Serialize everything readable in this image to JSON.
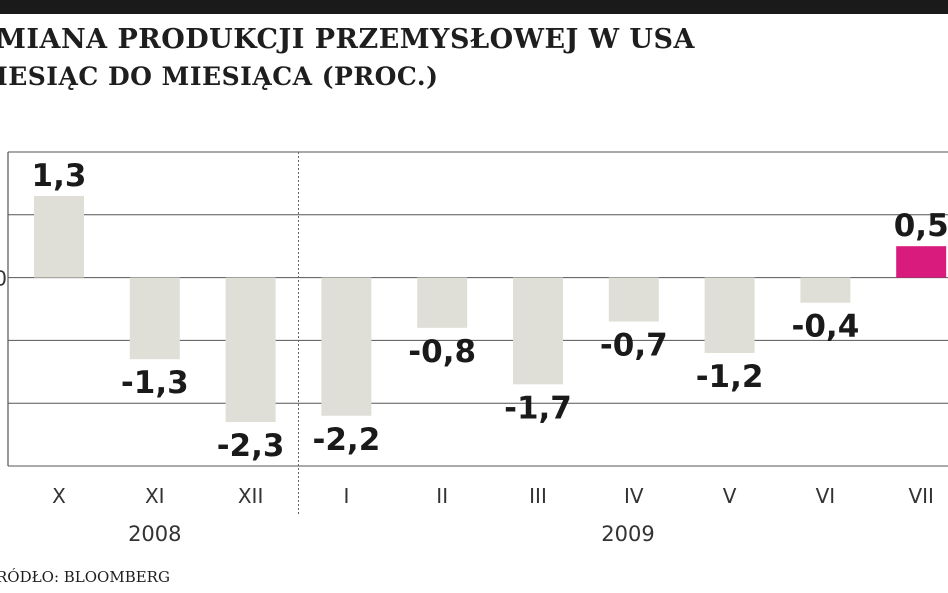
{
  "header": {
    "title": "MIANA PRODUKCJI PRZEMYSŁOWEJ W USA",
    "subtitle": "IESIĄC DO MIESIĄCA (PROC.)"
  },
  "footer": {
    "source": "RÓDŁO: BLOOMBERG"
  },
  "chart_data": {
    "type": "bar",
    "categories": [
      "X",
      "XI",
      "XII",
      "I",
      "II",
      "III",
      "IV",
      "V",
      "VI",
      "VII"
    ],
    "values": [
      1.3,
      -1.3,
      -2.3,
      -2.2,
      -0.8,
      -1.7,
      -0.7,
      -1.2,
      -0.4,
      0.5
    ],
    "value_labels": [
      "1,3",
      "-1,3",
      "-2,3",
      "-2,2",
      "-0,8",
      "-1,7",
      "-0,7",
      "-1,2",
      "-0,4",
      "0,5"
    ],
    "groups": [
      {
        "label": "2008",
        "categories": [
          "X",
          "XI",
          "XII"
        ]
      },
      {
        "label": "2009",
        "categories": [
          "I",
          "II",
          "III",
          "IV",
          "V",
          "VI",
          "VII"
        ]
      }
    ],
    "ylim": [
      -3,
      2
    ],
    "gridlines": [
      -3,
      -2,
      -1,
      0,
      1,
      2
    ],
    "zero_tick_label": "0",
    "grid": true,
    "colors": {
      "bar": "#e0dfd7",
      "highlight": "#d81b7d",
      "grid": "#555555",
      "text": "#1a1a1a"
    },
    "highlight_category": "VII"
  }
}
